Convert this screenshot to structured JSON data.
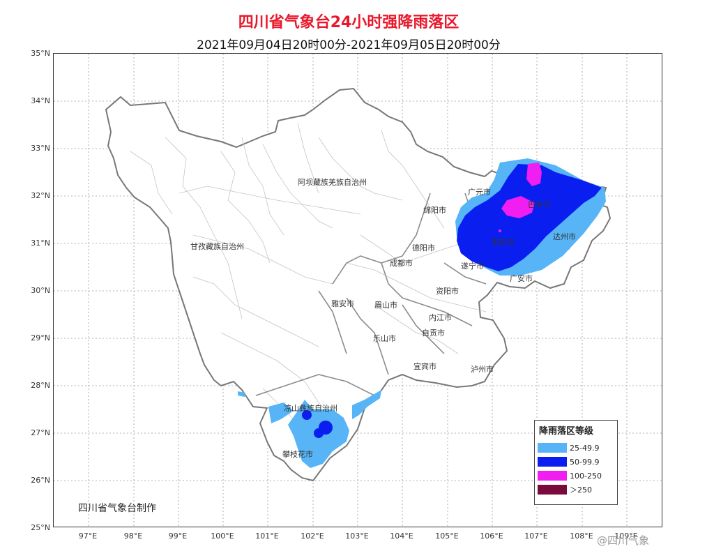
{
  "title": "四川省气象台24小时强降雨落区",
  "subtitle": "2021年09月04日20时00分-2021年09月05日20时00分",
  "lat_labels": [
    "35°N",
    "34°N",
    "33°N",
    "32°N",
    "31°N",
    "30°N",
    "29°N",
    "28°N",
    "27°N",
    "26°N",
    "25°N"
  ],
  "lon_labels": [
    "97°E",
    "98°E",
    "99°E",
    "100°E",
    "101°E",
    "102°E",
    "103°E",
    "104°E",
    "105°E",
    "106°E",
    "107°E",
    "108°E",
    "109°E"
  ],
  "places": {
    "aba": "阿坝藏族羌族自治州",
    "ganzi": "甘孜藏族自治州",
    "guangyuan": "广元市",
    "mianyang": "绵阳市",
    "bazhong": "巴中市",
    "dazhou": "达州市",
    "deyang": "德阳市",
    "nanchong": "南充市",
    "chengdu": "成都市",
    "suining": "遂宁市",
    "guangan": "广安市",
    "ziyang": "资阳市",
    "yaan": "雅安市",
    "meishan": "眉山市",
    "neijiang": "内江市",
    "leshan": "乐山市",
    "zigong": "自贡市",
    "yibin": "宜宾市",
    "luzhou": "泸州市",
    "liangshan": "凉山彝族自治州",
    "panzhihua": "攀枝花市"
  },
  "legend": {
    "title": "降雨落区等级",
    "items": [
      {
        "label": "25-49.9",
        "color": "#56b4f7"
      },
      {
        "label": "50-99.9",
        "color": "#0a1ef0"
      },
      {
        "label": "100-250",
        "color": "#f01ef0"
      },
      {
        "label": "＞250",
        "color": "#7a0a3c"
      }
    ]
  },
  "credit": "四川省气象台制作",
  "watermark": "@四川气象"
}
